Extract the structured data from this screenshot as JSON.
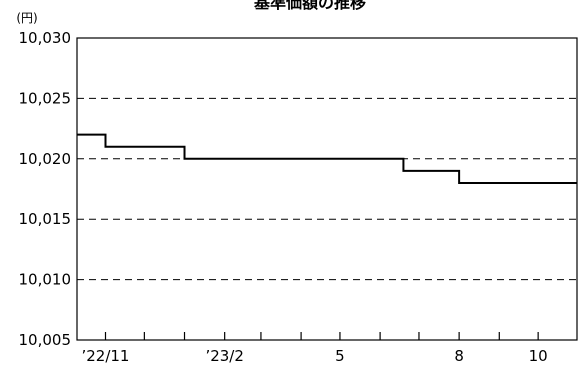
{
  "chart_data": {
    "type": "line",
    "title": "基準価額の推移",
    "unit_label": "(円)",
    "xlabel": "",
    "ylabel": "",
    "ylim": [
      10005,
      10030
    ],
    "y_ticks": [
      10005,
      10010,
      10015,
      10020,
      10025,
      10030
    ],
    "y_tick_labels": [
      "10,005",
      "10,010",
      "10,015",
      "10,020",
      "10,025",
      "10,030"
    ],
    "x_ticks": [
      "2022-11",
      "2023-02",
      "2023-05",
      "2023-08",
      "2023-10"
    ],
    "x_tick_labels": [
      "’22/11",
      "’23/2",
      "5",
      "8",
      "10"
    ],
    "grid": true,
    "series": [
      {
        "step": true,
        "x": [
          "2022-10-10",
          "2022-11-01",
          "2023-01-01",
          "2023-06-19",
          "2023-08-01",
          "2023-10-31"
        ],
        "values": [
          10022,
          10021,
          10020,
          10019,
          10018,
          10018
        ]
      }
    ]
  }
}
